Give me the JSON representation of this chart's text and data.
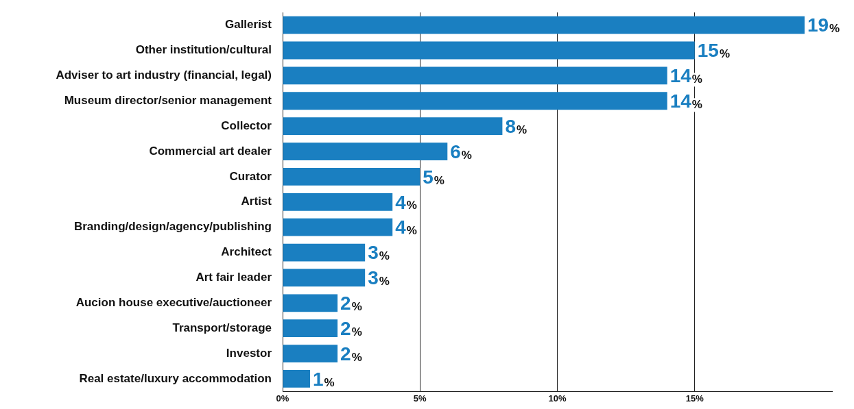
{
  "chart_data": {
    "type": "bar",
    "orientation": "horizontal",
    "color": "#1a7fc1",
    "categories": [
      "Gallerist",
      "Other institution/cultural",
      "Adviser to art industry (financial, legal)",
      "Museum director/senior management",
      "Collector",
      "Commercial art dealer",
      "Curator",
      "Artist",
      "Branding/design/agency/publishing",
      "Architect",
      "Art fair leader",
      "Aucion house executive/auctioneer",
      "Transport/storage",
      "Investor",
      "Real estate/luxury accommodation"
    ],
    "values": [
      19,
      15,
      14,
      14,
      8,
      6,
      5,
      4,
      4,
      3,
      3,
      2,
      2,
      2,
      1
    ],
    "value_labels": [
      "19%",
      "15%",
      "14%",
      "14%",
      "8%",
      "6%",
      "5%",
      "4%",
      "4%",
      "3%",
      "3%",
      "2%",
      "2%",
      "2%",
      "1%"
    ],
    "xlim": [
      0,
      20
    ],
    "xticks": [
      {
        "value": 0,
        "label": "0%"
      },
      {
        "value": 5,
        "label": "5%"
      },
      {
        "value": 10,
        "label": "10%"
      },
      {
        "value": 15,
        "label": "15%"
      }
    ],
    "grid": "x",
    "legend": false
  }
}
